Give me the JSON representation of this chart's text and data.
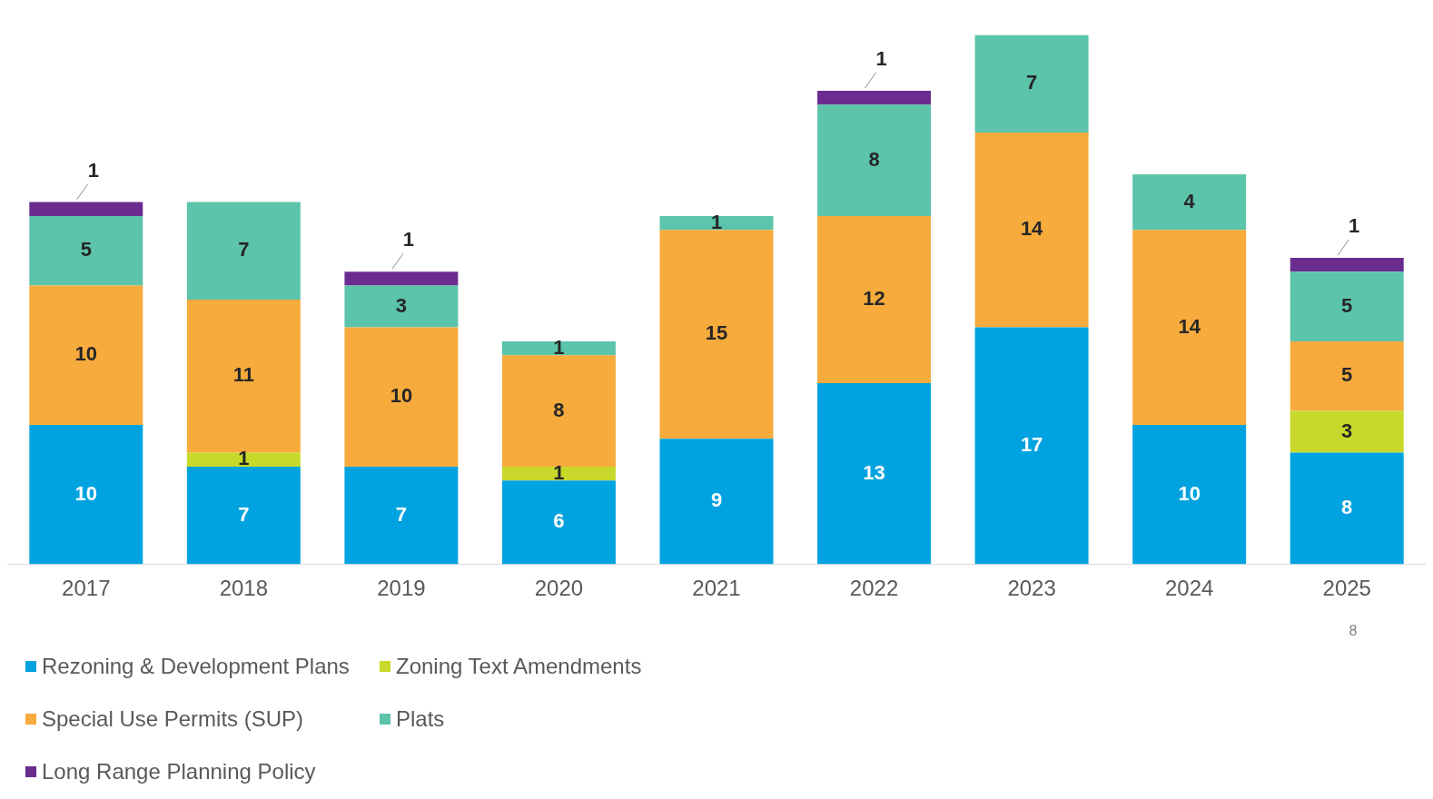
{
  "chart_data": {
    "type": "bar",
    "stacked": true,
    "data_labels": true,
    "legend": "bottom left",
    "grid": false,
    "categories": [
      "2017",
      "2018",
      "2019",
      "2020",
      "2021",
      "2022",
      "2023",
      "2024",
      "2025"
    ],
    "series": [
      {
        "name": "Rezoning & Development Plans",
        "color": "#00a3e0",
        "values": [
          10,
          7,
          7,
          6,
          9,
          13,
          17,
          10,
          8
        ]
      },
      {
        "name": "Zoning Text Amendments",
        "color": "#c8d92b",
        "values": [
          null,
          1,
          null,
          1,
          null,
          null,
          null,
          null,
          3
        ]
      },
      {
        "name": "Special Use Permits (SUP)",
        "color": "#f7ab3c",
        "values": [
          10,
          11,
          10,
          8,
          15,
          12,
          14,
          14,
          5
        ]
      },
      {
        "name": "Plats",
        "color": "#5bc4aa",
        "values": [
          5,
          7,
          3,
          1,
          1,
          8,
          7,
          4,
          5
        ]
      },
      {
        "name": "Long Range Planning Policy",
        "color": "#6b2c8f",
        "values": [
          1,
          null,
          1,
          null,
          null,
          1,
          null,
          null,
          1
        ]
      }
    ],
    "annotations": [
      "8"
    ]
  }
}
